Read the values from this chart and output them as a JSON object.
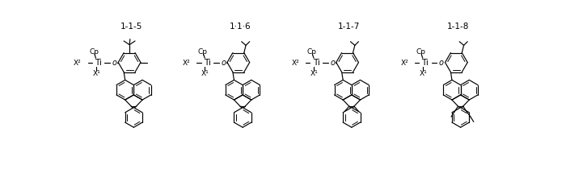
{
  "figsize": [
    7.0,
    2.1
  ],
  "dpi": 100,
  "bg": "#ffffff",
  "labels": [
    "1-1-5",
    "1-1-6",
    "1-1-7",
    "1-1-8"
  ],
  "label_dots": [
    "1-1-5",
    "1·1·6",
    "1-1-7",
    "1-1-8"
  ],
  "structure_offsets": [
    0,
    175,
    350,
    525
  ],
  "variants": [
    0,
    1,
    2,
    3
  ]
}
